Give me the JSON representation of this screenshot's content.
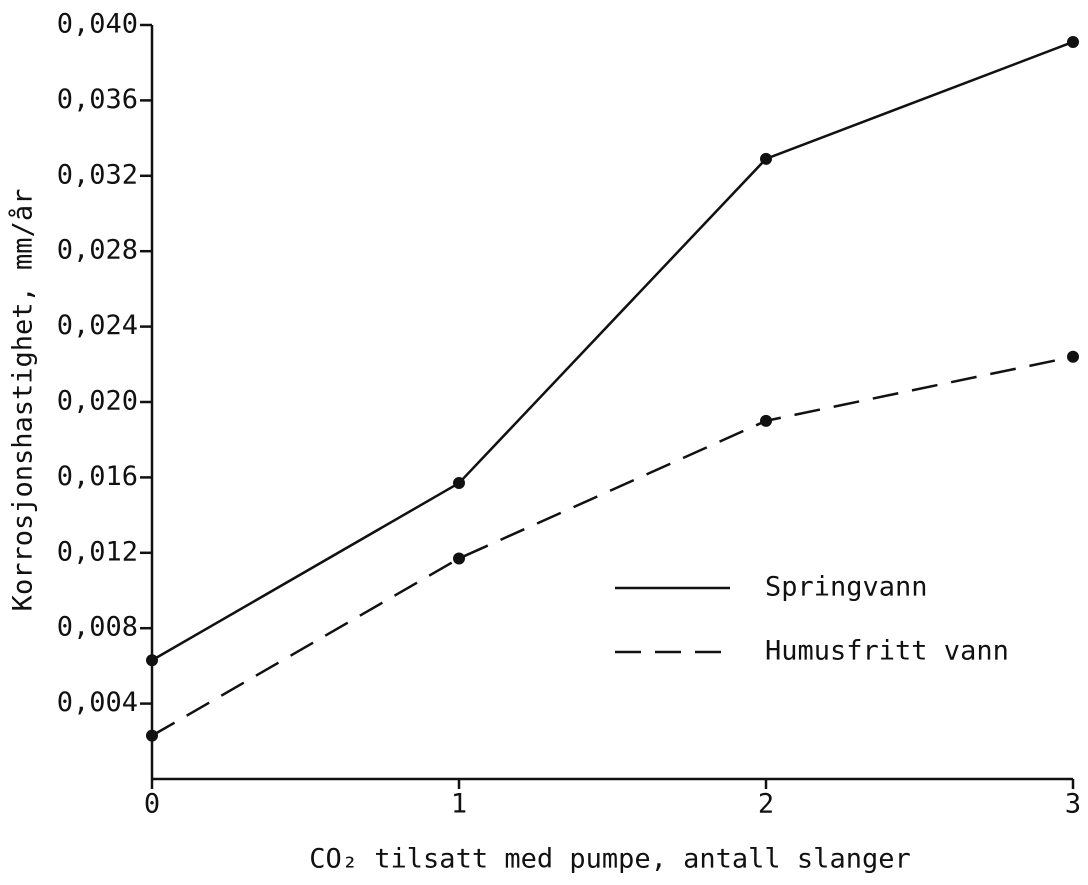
{
  "chart_data": {
    "type": "line",
    "xlabel": "CO₂ tilsatt med pumpe, antall slanger",
    "ylabel": "Korrosjonshastighet, mm/år",
    "x": [
      0,
      1,
      2,
      3
    ],
    "series": [
      {
        "name": "Springvann",
        "color": "#111111",
        "linestyle": "solid",
        "values": [
          0.0063,
          0.0157,
          0.0329,
          0.0391
        ]
      },
      {
        "name": "Humusfritt vann",
        "color": "#111111",
        "linestyle": "dashed",
        "values": [
          0.0023,
          0.0117,
          0.019,
          0.0224
        ]
      }
    ],
    "xlim": [
      0,
      3
    ],
    "xticks": [
      0,
      1,
      2,
      3
    ],
    "ylim": [
      0,
      0.04
    ],
    "yticks": [
      {
        "value": 0.004,
        "label": "0,004"
      },
      {
        "value": 0.008,
        "label": "0,008"
      },
      {
        "value": 0.012,
        "label": "0,012"
      },
      {
        "value": 0.016,
        "label": "0,016"
      },
      {
        "value": 0.02,
        "label": "0,020"
      },
      {
        "value": 0.024,
        "label": "0,024"
      },
      {
        "value": 0.028,
        "label": "0,028"
      },
      {
        "value": 0.032,
        "label": "0,032"
      },
      {
        "value": 0.036,
        "label": "0,036"
      },
      {
        "value": 0.04,
        "label": "0,040"
      }
    ],
    "grid": false,
    "legend": "lower right"
  }
}
